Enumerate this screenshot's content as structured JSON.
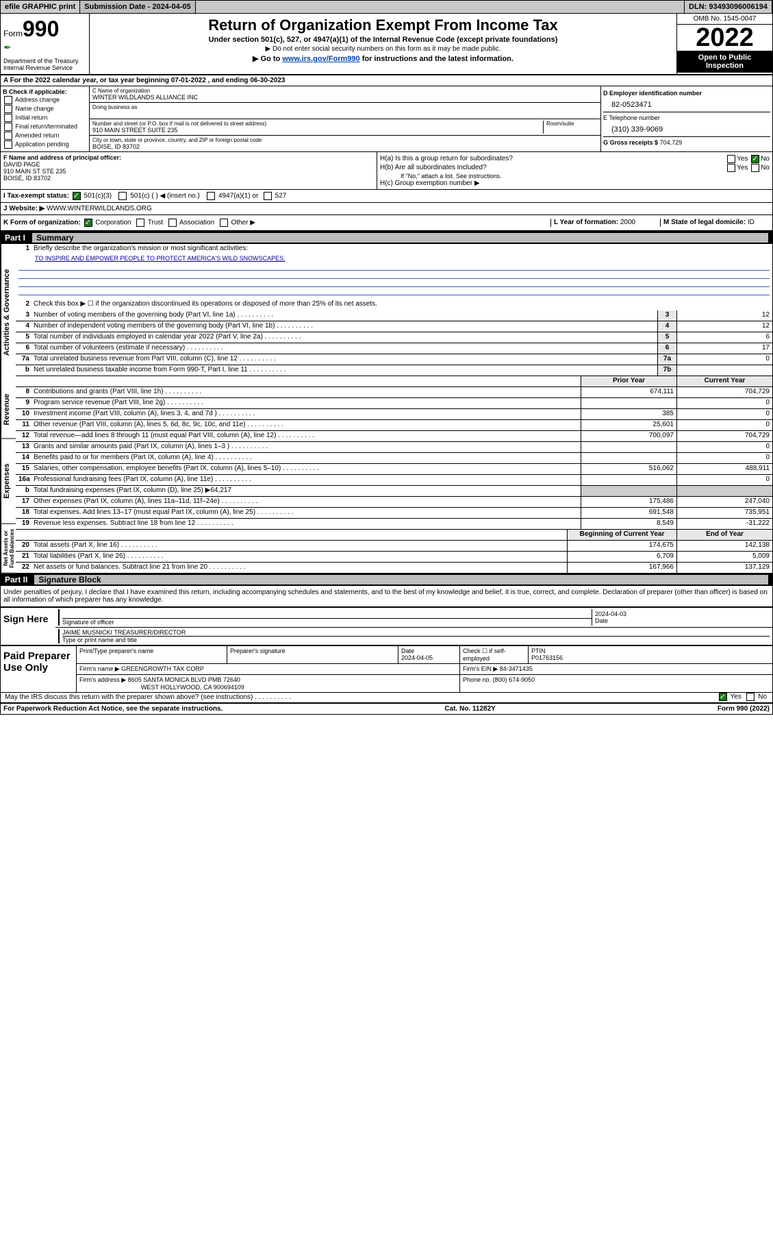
{
  "topbar": {
    "efile": "efile GRAPHIC print",
    "subdate_label": "Submission Date - ",
    "subdate": "2024-04-05",
    "dln": "DLN: 93493096006194"
  },
  "header": {
    "form_label": "Form",
    "form_num": "990",
    "dept": "Department of the Treasury\nInternal Revenue Service",
    "title": "Return of Organization Exempt From Income Tax",
    "subtitle": "Under section 501(c), 527, or 4947(a)(1) of the Internal Revenue Code (except private foundations)",
    "note1": "▶ Do not enter social security numbers on this form as it may be made public.",
    "note2_pre": "▶ Go to ",
    "note2_link": "www.irs.gov/Form990",
    "note2_post": " for instructions and the latest information.",
    "omb": "OMB No. 1545-0047",
    "year": "2022",
    "open": "Open to Public Inspection"
  },
  "lineA": "A For the 2022 calendar year, or tax year beginning 07-01-2022    , and ending 06-30-2023",
  "colB": {
    "label": "B Check if applicable:",
    "items": [
      "Address change",
      "Name change",
      "Initial return",
      "Final return/terminated",
      "Amended return",
      "Application pending"
    ]
  },
  "colC": {
    "name_label": "C Name of organization",
    "name": "WINTER WILDLANDS ALLIANCE INC",
    "dba_label": "Doing business as",
    "addr_label": "Number and street (or P.O. box if mail is not delivered to street address)",
    "room_label": "Room/suite",
    "addr": "910 MAIN STREET SUITE 235",
    "city_label": "City or town, state or province, country, and ZIP or foreign postal code",
    "city": "BOISE, ID  83702"
  },
  "colD": {
    "ein_label": "D Employer identification number",
    "ein": "82-0523471",
    "tel_label": "E Telephone number",
    "tel": "(310) 339-9069",
    "gross_label": "G Gross receipts $",
    "gross": "704,729"
  },
  "colF": {
    "label": "F Name and address of principal officer:",
    "name": "DAVID PAGE",
    "addr1": "910 MAIN ST STE 235",
    "addr2": "BOISE, ID  83702"
  },
  "colH": {
    "ha": "H(a)  Is this a group return for subordinates?",
    "hb": "H(b)  Are all subordinates included?",
    "hb_note": "If \"No,\" attach a list. See instructions.",
    "hc": "H(c)  Group exemption number ▶"
  },
  "rowI": {
    "label": "I    Tax-exempt status:",
    "opt1": "501(c)(3)",
    "opt2": "501(c) (  ) ◀ (insert no.)",
    "opt3": "4947(a)(1) or",
    "opt4": "527"
  },
  "rowJ": {
    "label": "J   Website: ▶",
    "val": "WWW.WINTERWILDLANDS.ORG"
  },
  "rowK": {
    "label": "K Form of organization:",
    "opts": [
      "Corporation",
      "Trust",
      "Association",
      "Other ▶"
    ],
    "l_label": "L Year of formation:",
    "l_val": "2000",
    "m_label": "M State of legal domicile:",
    "m_val": "ID"
  },
  "part1": {
    "num": "Part I",
    "title": "Summary"
  },
  "summary": {
    "sec1_label": "Activities & Governance",
    "sec2_label": "Revenue",
    "sec3_label": "Expenses",
    "sec4_label": "Net Assets or Fund Balances",
    "q1": "Briefly describe the organization's mission or most significant activities:",
    "mission": "TO INSPIRE AND EMPOWER PEOPLE TO PROTECT AMERICA'S WILD SNOWSCAPES.",
    "q2": "Check this box ▶ ☐  if the organization discontinued its operations or disposed of more than 25% of its net assets.",
    "rows_gov": [
      {
        "n": "3",
        "t": "Number of voting members of the governing body (Part VI, line 1a)",
        "box": "3",
        "v": "12"
      },
      {
        "n": "4",
        "t": "Number of independent voting members of the governing body (Part VI, line 1b)",
        "box": "4",
        "v": "12"
      },
      {
        "n": "5",
        "t": "Total number of individuals employed in calendar year 2022 (Part V, line 2a)",
        "box": "5",
        "v": "6"
      },
      {
        "n": "6",
        "t": "Total number of volunteers (estimate if necessary)",
        "box": "6",
        "v": "17"
      },
      {
        "n": "7a",
        "t": "Total unrelated business revenue from Part VIII, column (C), line 12",
        "box": "7a",
        "v": "0"
      },
      {
        "n": "b",
        "t": "Net unrelated business taxable income from Form 990-T, Part I, line 11",
        "box": "7b",
        "v": ""
      }
    ],
    "hdr_prior": "Prior Year",
    "hdr_current": "Current Year",
    "rows_rev": [
      {
        "n": "8",
        "t": "Contributions and grants (Part VIII, line 1h)",
        "p": "674,111",
        "c": "704,729"
      },
      {
        "n": "9",
        "t": "Program service revenue (Part VIII, line 2g)",
        "p": "",
        "c": "0"
      },
      {
        "n": "10",
        "t": "Investment income (Part VIII, column (A), lines 3, 4, and 7d )",
        "p": "385",
        "c": "0"
      },
      {
        "n": "11",
        "t": "Other revenue (Part VIII, column (A), lines 5, 6d, 8c, 9c, 10c, and 11e)",
        "p": "25,601",
        "c": "0"
      },
      {
        "n": "12",
        "t": "Total revenue—add lines 8 through 11 (must equal Part VIII, column (A), line 12)",
        "p": "700,097",
        "c": "704,729"
      }
    ],
    "rows_exp": [
      {
        "n": "13",
        "t": "Grants and similar amounts paid (Part IX, column (A), lines 1–3 )",
        "p": "",
        "c": "0"
      },
      {
        "n": "14",
        "t": "Benefits paid to or for members (Part IX, column (A), line 4)",
        "p": "",
        "c": "0"
      },
      {
        "n": "15",
        "t": "Salaries, other compensation, employee benefits (Part IX, column (A), lines 5–10)",
        "p": "516,062",
        "c": "488,911"
      },
      {
        "n": "16a",
        "t": "Professional fundraising fees (Part IX, column (A), line 11e)",
        "p": "",
        "c": "0"
      },
      {
        "n": "b",
        "t": "Total fundraising expenses (Part IX, column (D), line 25) ▶64,217",
        "p": "—",
        "c": "—"
      },
      {
        "n": "17",
        "t": "Other expenses (Part IX, column (A), lines 11a–11d, 11f–24e)",
        "p": "175,486",
        "c": "247,040"
      },
      {
        "n": "18",
        "t": "Total expenses. Add lines 13–17 (must equal Part IX, column (A), line 25)",
        "p": "691,548",
        "c": "735,951"
      },
      {
        "n": "19",
        "t": "Revenue less expenses. Subtract line 18 from line 12",
        "p": "8,549",
        "c": "-31,222"
      }
    ],
    "hdr_begin": "Beginning of Current Year",
    "hdr_end": "End of Year",
    "rows_net": [
      {
        "n": "20",
        "t": "Total assets (Part X, line 16)",
        "p": "174,675",
        "c": "142,138"
      },
      {
        "n": "21",
        "t": "Total liabilities (Part X, line 26)",
        "p": "6,709",
        "c": "5,009"
      },
      {
        "n": "22",
        "t": "Net assets or fund balances. Subtract line 21 from line 20",
        "p": "167,966",
        "c": "137,129"
      }
    ]
  },
  "part2": {
    "num": "Part II",
    "title": "Signature Block"
  },
  "sig": {
    "declaration": "Under penalties of perjury, I declare that I have examined this return, including accompanying schedules and statements, and to the best of my knowledge and belief, it is true, correct, and complete. Declaration of preparer (other than officer) is based on all information of which preparer has any knowledge.",
    "sign_here": "Sign Here",
    "sig_officer": "Signature of officer",
    "date_label": "Date",
    "date": "2024-04-03",
    "name": "JAIME MUSNICKI  TREASURER/DIRECTOR",
    "name_label": "Type or print name and title"
  },
  "paid": {
    "label": "Paid Preparer Use Only",
    "h1": "Print/Type preparer's name",
    "h2": "Preparer's signature",
    "h3": "Date",
    "h3v": "2024-04-05",
    "h4": "Check ☐ if self-employed",
    "h5": "PTIN",
    "h5v": "P01763156",
    "firm_label": "Firm's name    ▶",
    "firm": "GREENGROWTH TAX CORP",
    "firm_ein_label": "Firm's EIN ▶",
    "firm_ein": "84-3471435",
    "addr_label": "Firm's address ▶",
    "addr1": "8605 SANTA MONICA BLVD PMB 72640",
    "addr2": "WEST HOLLYWOOD, CA  900694109",
    "phone_label": "Phone no.",
    "phone": "(800) 674-9050"
  },
  "footer": {
    "may": "May the IRS discuss this return with the preparer shown above? (see instructions)",
    "paperwork": "For Paperwork Reduction Act Notice, see the separate instructions.",
    "cat": "Cat. No. 11282Y",
    "form": "Form 990 (2022)"
  }
}
